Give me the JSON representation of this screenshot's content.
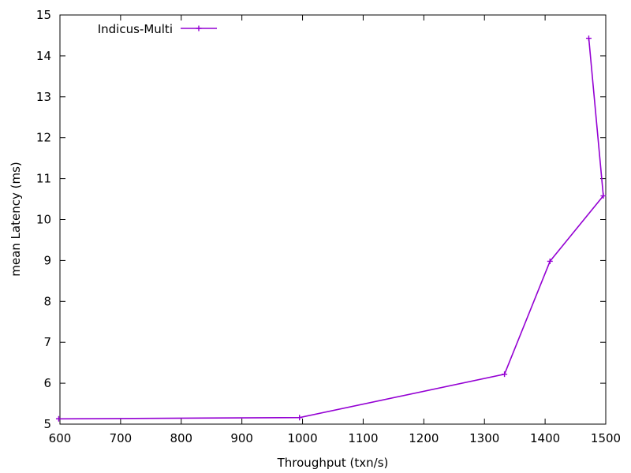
{
  "chart_data": {
    "type": "line",
    "title": "",
    "xlabel": "Throughput (txn/s)",
    "ylabel": "mean Latency (ms)",
    "xlim": [
      600,
      1500
    ],
    "ylim": [
      5,
      15
    ],
    "xticks": [
      600,
      700,
      800,
      900,
      1000,
      1100,
      1200,
      1300,
      1400,
      1500
    ],
    "yticks": [
      5,
      6,
      7,
      8,
      9,
      10,
      11,
      12,
      13,
      14,
      15
    ],
    "grid": false,
    "legend_position": "top-left",
    "series": [
      {
        "name": "Indicus-Multi",
        "color": "#9400d3",
        "marker": "plus",
        "points": [
          {
            "x": 598,
            "y": 5.13
          },
          {
            "x": 995,
            "y": 5.16
          },
          {
            "x": 1333,
            "y": 6.22
          },
          {
            "x": 1408,
            "y": 8.98
          },
          {
            "x": 1496,
            "y": 10.58
          },
          {
            "x": 1472,
            "y": 14.43
          }
        ]
      }
    ]
  }
}
